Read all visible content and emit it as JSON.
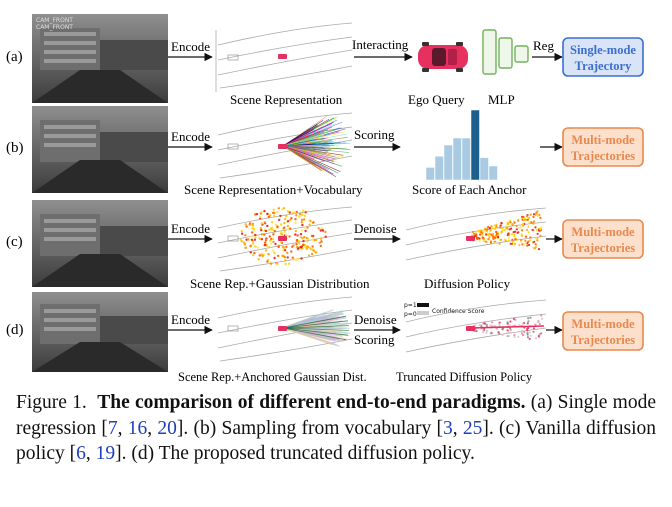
{
  "rows": [
    {
      "label": "(a)",
      "camera_text": [
        "CAM_FRONT",
        "CAM_FRONT"
      ],
      "encode": "Encode",
      "scene_caption": "Scene Representation",
      "arrow2": "Interacting",
      "mid_caption_1": "Ego Query",
      "mid_caption_2": "MLP",
      "arrow3": "Reg",
      "output": [
        "Single-mode",
        "Trajectory"
      ]
    },
    {
      "label": "(b)",
      "encode": "Encode",
      "scene_caption": "Scene Representation+Vocabulary",
      "arrow2": "Scoring",
      "mid_caption": "Score of Each Anchor",
      "histogram": [
        0.18,
        0.34,
        0.5,
        0.6,
        0.6,
        1.0,
        0.32,
        0.2
      ],
      "output": [
        "Multi-mode",
        "Trajectories"
      ]
    },
    {
      "label": "(c)",
      "encode": "Encode",
      "scene_caption": "Scene Rep.+Gaussian Distribution",
      "arrow2": "Denoise",
      "mid_caption": "Diffusion Policy",
      "output": [
        "Multi-mode",
        "Trajectories"
      ]
    },
    {
      "label": "(d)",
      "encode": "Encode",
      "scene_caption": "Scene Rep.+Anchored Gaussian Dist.",
      "arrow2a": "Denoise",
      "arrow2b": "Scoring",
      "legend": [
        "p=1",
        "p=0",
        "Confidence Score"
      ],
      "mid_caption": "Truncated Diffusion Policy",
      "output": [
        "Multi-mode",
        "Trajectories"
      ]
    }
  ],
  "caption": {
    "prefix": "Figure 1.",
    "title": "The comparison of different end-to-end paradigms.",
    "s1": "(a) Single mode regression [",
    "c1": "7",
    "s2": ", ",
    "c2": "16",
    "s3": ", ",
    "c3": "20",
    "s4": "]. (b) Sampling from vocabulary [",
    "c4": "3",
    "s5": ", ",
    "c5": "25",
    "s6": "]. (c) Vanilla diffusion policy [",
    "c6": "6",
    "s7": ", ",
    "c7": "19",
    "s8": "]. (d) The proposed truncated diffusion policy."
  },
  "colors": {
    "single_box_fill": "#d9e4f6",
    "single_box_border": "#3b6fcf",
    "single_box_text": "#3b6fcf",
    "multi_box_fill": "#fde0cc",
    "multi_box_border": "#e8894f",
    "multi_box_text": "#e8894f",
    "ego_car": "#e8305e",
    "mlp": "#6fb35a",
    "histogram": "#1c5f8c",
    "cite": "#1f3fb8"
  }
}
